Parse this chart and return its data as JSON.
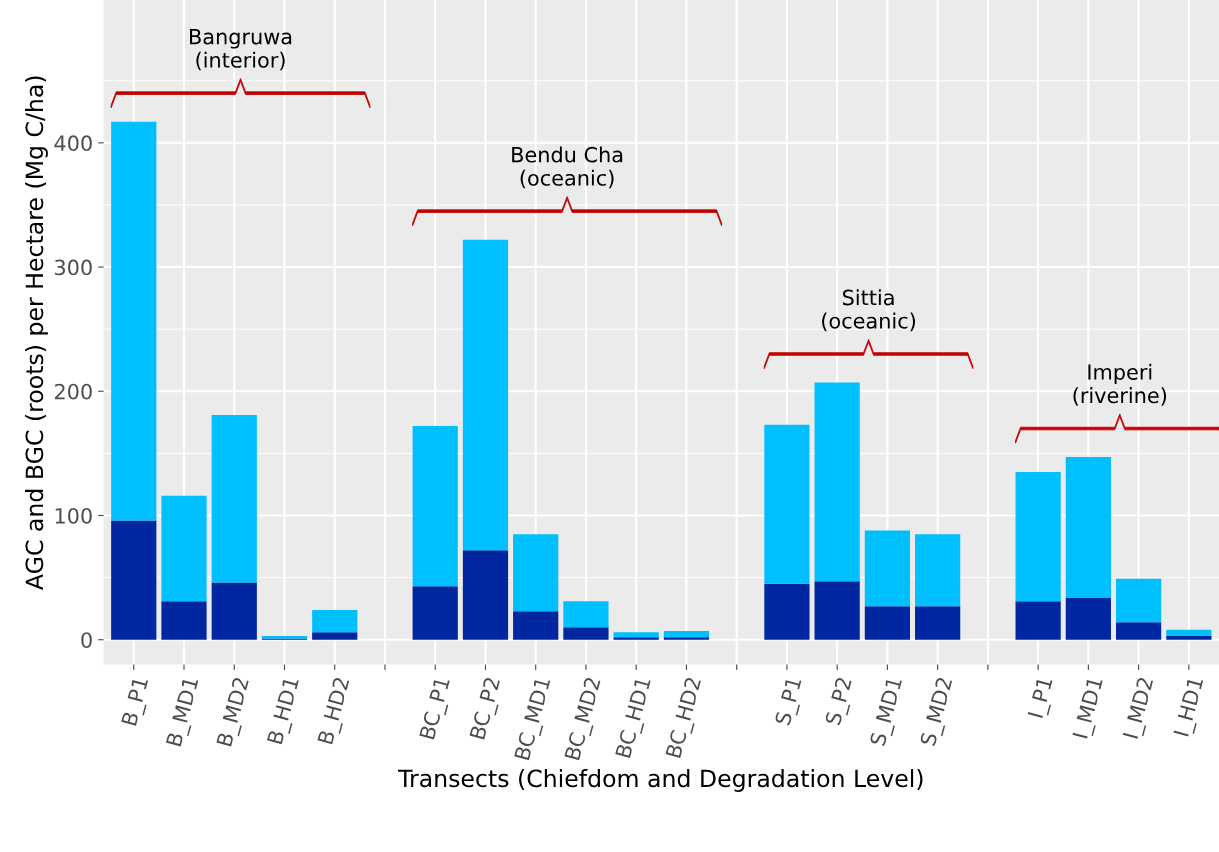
{
  "chart_data": {
    "type": "bar",
    "stacked": true,
    "xlabel": "Transects (Chiefdom and Degradation Level)",
    "ylabel": "AGC and BGC (roots) per Hectare (Mg C/ha)",
    "categories": [
      "B_P1",
      "B_MD1",
      "B_MD2",
      "B_HD1",
      "B_HD2",
      null,
      "BC_P1",
      "BC_P2",
      "BC_MD1",
      "BC_MD2",
      "BC_HD1",
      "BC_HD2",
      null,
      "S_P1",
      "S_P2",
      "S_MD1",
      "S_MD2",
      null,
      "I_P1",
      "I_MD1",
      "I_MD2",
      "I_HD1"
    ],
    "series": [
      {
        "color": "#0026a0",
        "values": [
          96,
          31,
          46,
          1,
          6,
          null,
          43,
          72,
          23,
          10,
          2,
          2,
          null,
          45,
          47,
          27,
          27,
          null,
          31,
          34,
          14,
          3
        ]
      },
      {
        "color": "#00bfff",
        "values": [
          321,
          85,
          135,
          2,
          18,
          null,
          129,
          250,
          62,
          21,
          4,
          5,
          null,
          128,
          160,
          61,
          58,
          null,
          104,
          113,
          35,
          5
        ]
      }
    ],
    "annotations": [
      "Bangruwa\n(interior)",
      "Bendu Cha\n(oceanic)",
      "Sittia\n(oceanic)",
      "Imperi\n(riverine)"
    ],
    "ylim": [
      -20,
      515
    ],
    "yticks": [
      0,
      100,
      200,
      300,
      400
    ],
    "grid": true
  }
}
